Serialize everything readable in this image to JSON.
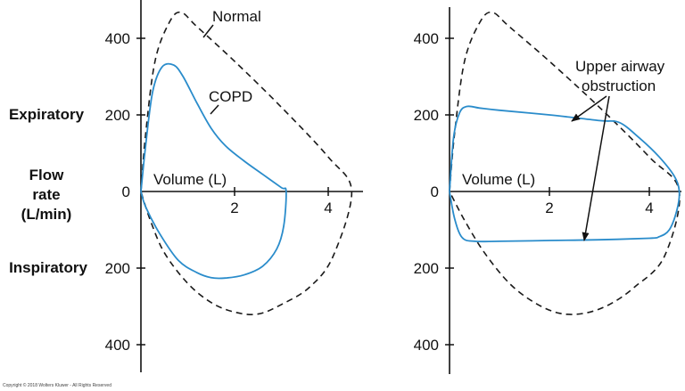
{
  "side_labels": {
    "expiratory": "Expiratory",
    "flow_line1": "Flow",
    "flow_line2": "rate",
    "flow_line3": "(L/min)",
    "inspiratory": "Inspiratory"
  },
  "copyright": "Copyright © 2018 Wolters Kluwer - All Rights Reserved",
  "colors": {
    "normal": "#1a1a1a",
    "pathology": "#2a8ccb",
    "axis": "#111111"
  },
  "chart_data": [
    {
      "type": "line",
      "xlabel": "Volume (L)",
      "x_ticks": [
        2,
        4
      ],
      "y_ticks": [
        400,
        200,
        0,
        200,
        400
      ],
      "xlim": [
        0,
        4.4
      ],
      "ylim": [
        -470,
        490
      ],
      "series": [
        {
          "name": "Normal",
          "style": "dashed",
          "x": [
            0,
            0.1,
            0.3,
            0.6,
            0.85,
            1.2,
            2.0,
            3.0,
            4.0,
            4.5,
            4.1,
            3.6,
            3.0,
            2.5,
            2.0,
            1.5,
            1.0,
            0.5,
            0.2,
            0
          ],
          "y": [
            0,
            150,
            340,
            440,
            468,
            430,
            340,
            220,
            90,
            0,
            -170,
            -250,
            -295,
            -320,
            -315,
            -290,
            -240,
            -160,
            -75,
            0
          ]
        },
        {
          "name": "COPD",
          "style": "solid",
          "x": [
            0,
            0.1,
            0.25,
            0.45,
            0.7,
            0.9,
            1.2,
            1.5,
            1.8,
            2.2,
            2.6,
            3.0,
            3.1,
            3.05,
            2.9,
            2.6,
            2.2,
            1.8,
            1.5,
            1.2,
            0.8,
            0.4,
            0.1,
            0
          ],
          "y": [
            0,
            120,
            260,
            325,
            330,
            300,
            230,
            165,
            120,
            80,
            45,
            10,
            0,
            -90,
            -150,
            -195,
            -218,
            -226,
            -225,
            -212,
            -180,
            -110,
            -40,
            0
          ]
        }
      ]
    },
    {
      "type": "line",
      "xlabel": "Volume (L)",
      "x_ticks": [
        2,
        4
      ],
      "y_ticks": [
        400,
        200,
        0,
        200,
        400
      ],
      "xlim": [
        0,
        4.5
      ],
      "ylim": [
        -470,
        490
      ],
      "series": [
        {
          "name": "Normal",
          "style": "dashed",
          "x": [
            0,
            0.1,
            0.3,
            0.6,
            0.85,
            1.2,
            2.0,
            3.0,
            4.0,
            4.6,
            4.3,
            3.7,
            3.2,
            2.7,
            2.2,
            1.7,
            1.2,
            0.7,
            0.3,
            0
          ],
          "y": [
            0,
            150,
            340,
            440,
            468,
            430,
            340,
            220,
            90,
            0,
            -170,
            -250,
            -295,
            -318,
            -318,
            -290,
            -240,
            -160,
            -75,
            0
          ]
        },
        {
          "name": "Upper airway obstruction",
          "style": "solid",
          "x": [
            0,
            0.08,
            0.2,
            0.35,
            0.6,
            1.0,
            2.0,
            3.0,
            3.4,
            3.8,
            4.2,
            4.5,
            4.6,
            4.55,
            4.4,
            4.2,
            4.0,
            3.0,
            2.0,
            1.0,
            0.5,
            0.25,
            0.1,
            0
          ],
          "y": [
            0,
            140,
            205,
            222,
            218,
            212,
            200,
            185,
            180,
            140,
            90,
            40,
            0,
            -50,
            -100,
            -118,
            -122,
            -126,
            -128,
            -130,
            -130,
            -120,
            -70,
            0
          ]
        }
      ]
    }
  ],
  "annotations": {
    "normal_left": "Normal",
    "copd": "COPD",
    "obstruction_line1": "Upper airway",
    "obstruction_line2": "obstruction"
  }
}
